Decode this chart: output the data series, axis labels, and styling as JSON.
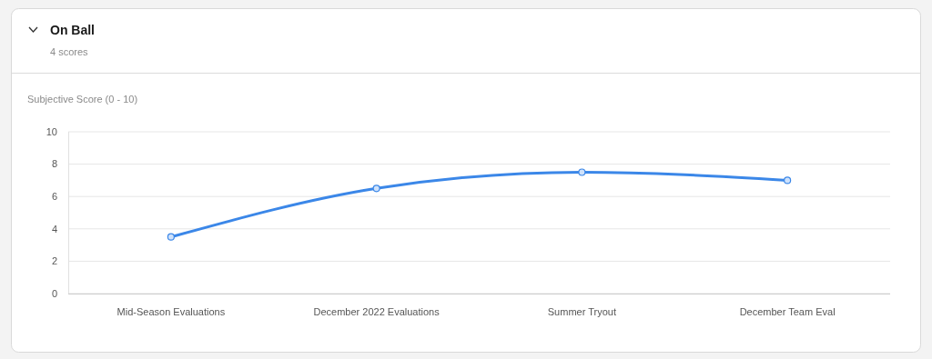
{
  "chart_data": {
    "type": "line",
    "title": "On Ball",
    "subtitle": "4 scores",
    "ylabel": "Subjective Score (0 - 10)",
    "categories": [
      "Mid-Season Evaluations",
      "December 2022 Evaluations",
      "Summer Tryout",
      "December Team Eval"
    ],
    "series": [
      {
        "color": "#3b87e8",
        "values": [
          3.5,
          6.5,
          7.5,
          7.0
        ]
      }
    ],
    "ylim": [
      0,
      10
    ],
    "yticks": [
      0,
      2,
      4,
      6,
      8,
      10
    ],
    "grid": "y",
    "marker": "circle",
    "line_style": "solid"
  }
}
